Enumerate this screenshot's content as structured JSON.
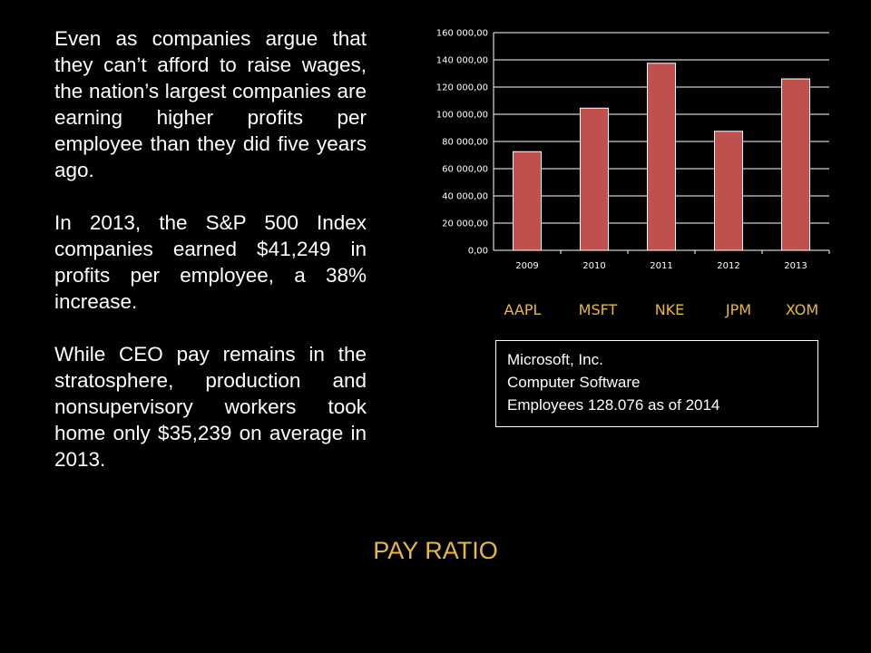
{
  "paragraphs": [
    "Even as companies argue that they can’t afford to raise wages, the nation’s largest companies are earning higher profits per employee than they did five years ago.",
    "In 2013, the S&P 500 Index companies earned $41,249 in profits per employee, a 38% increase.",
    "While CEO pay remains in the stratosphere, production and nonsupervisory workers took home only $35,239 on average in 2013."
  ],
  "chart_data": {
    "type": "bar",
    "categories": [
      "2009",
      "2010",
      "2011",
      "2012",
      "2013"
    ],
    "values": [
      72500,
      104500,
      137500,
      87500,
      126000
    ],
    "ylim": [
      0,
      160000
    ],
    "yticks": [
      "0,00",
      "20 000,00",
      "40 000,00",
      "60 000,00",
      "80 000,00",
      "100 000,00",
      "120 000,00",
      "140 000,00",
      "160 000,00"
    ],
    "ytick_values": [
      0,
      20000,
      40000,
      60000,
      80000,
      100000,
      120000,
      140000,
      160000
    ],
    "bar_color": "#c0504d",
    "grid": true,
    "legend": false
  },
  "tickers": [
    "AAPL",
    "MSFT",
    "NKE",
    "JPM",
    "XOM"
  ],
  "info_box": {
    "line1": "Microsoft, Inc.",
    "line2": "Computer Software",
    "line3": "Employees 128.076 as of 2014"
  },
  "footer_title": "PAY RATIO",
  "colors": {
    "accent": "#e6b93c",
    "bar": "#c0504d",
    "grid": "#ffffff",
    "background": "#000000"
  }
}
